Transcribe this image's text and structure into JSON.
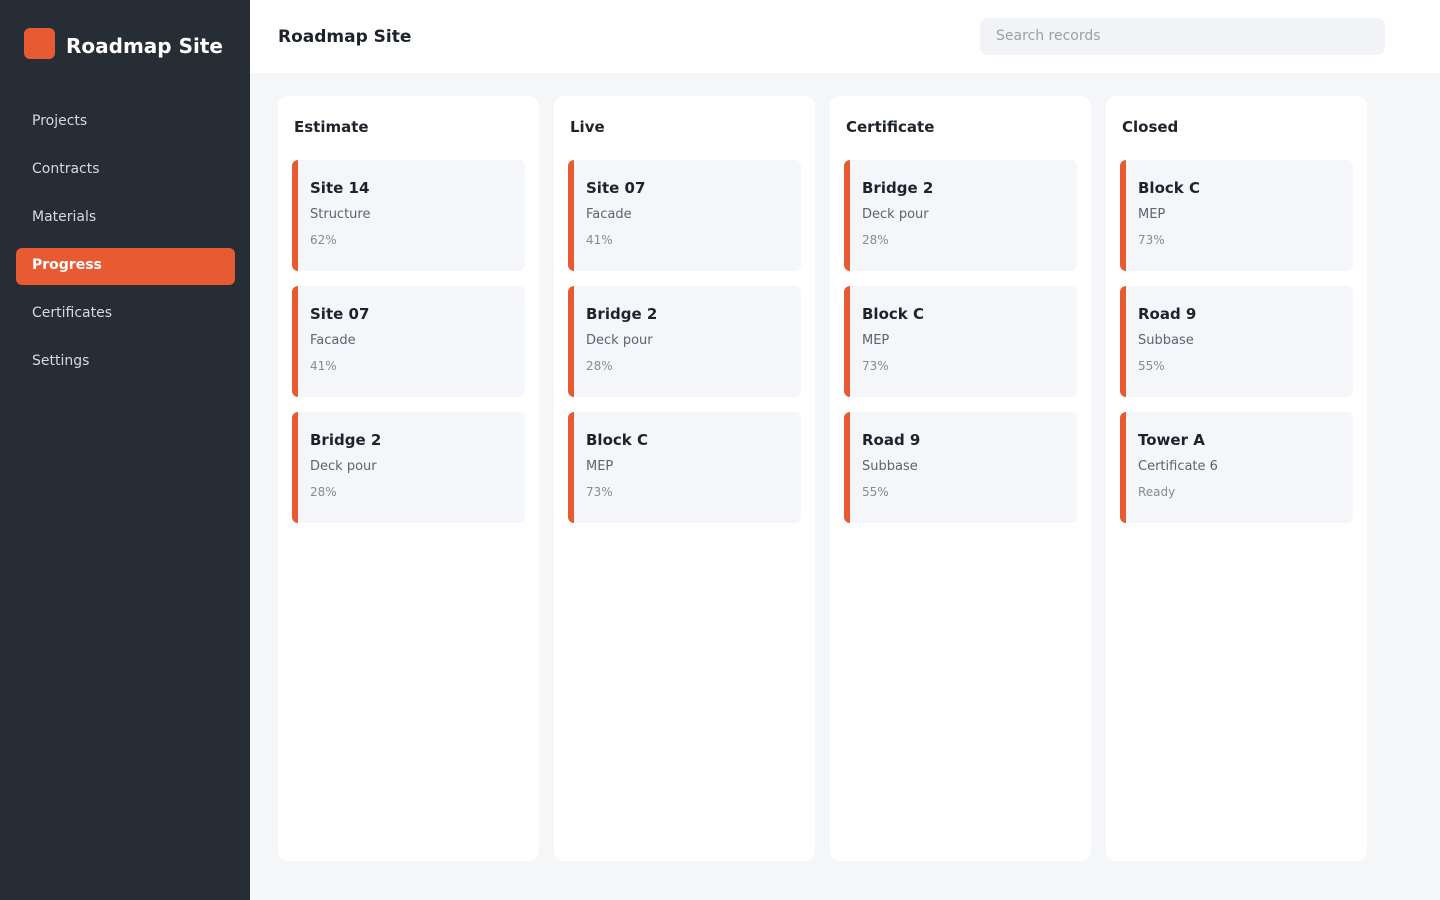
{
  "sidebar": {
    "brand": "Roadmap Site",
    "nav": [
      "Projects",
      "Contracts",
      "Materials",
      "Progress",
      "Certificates",
      "Settings"
    ],
    "active": 3
  },
  "header": {
    "title": "Roadmap Site",
    "search_placeholder": "Search records"
  },
  "board": {
    "columns": [
      {
        "title": "Estimate",
        "cards": [
          {
            "title": "Site 14",
            "subtitle": "Structure",
            "meta": "62%"
          },
          {
            "title": "Site 07",
            "subtitle": "Facade",
            "meta": "41%"
          },
          {
            "title": "Bridge 2",
            "subtitle": "Deck pour",
            "meta": "28%"
          }
        ]
      },
      {
        "title": "Live",
        "cards": [
          {
            "title": "Site 07",
            "subtitle": "Facade",
            "meta": "41%"
          },
          {
            "title": "Bridge 2",
            "subtitle": "Deck pour",
            "meta": "28%"
          },
          {
            "title": "Block C",
            "subtitle": "MEP",
            "meta": "73%"
          }
        ]
      },
      {
        "title": "Certificate",
        "cards": [
          {
            "title": "Bridge 2",
            "subtitle": "Deck pour",
            "meta": "28%"
          },
          {
            "title": "Block C",
            "subtitle": "MEP",
            "meta": "73%"
          },
          {
            "title": "Road 9",
            "subtitle": "Subbase",
            "meta": "55%"
          }
        ]
      },
      {
        "title": "Closed",
        "cards": [
          {
            "title": "Block C",
            "subtitle": "MEP",
            "meta": "73%"
          },
          {
            "title": "Road 9",
            "subtitle": "Subbase",
            "meta": "55%"
          },
          {
            "title": "Tower A",
            "subtitle": "Certificate 6",
            "meta": "Ready"
          }
        ]
      }
    ]
  }
}
